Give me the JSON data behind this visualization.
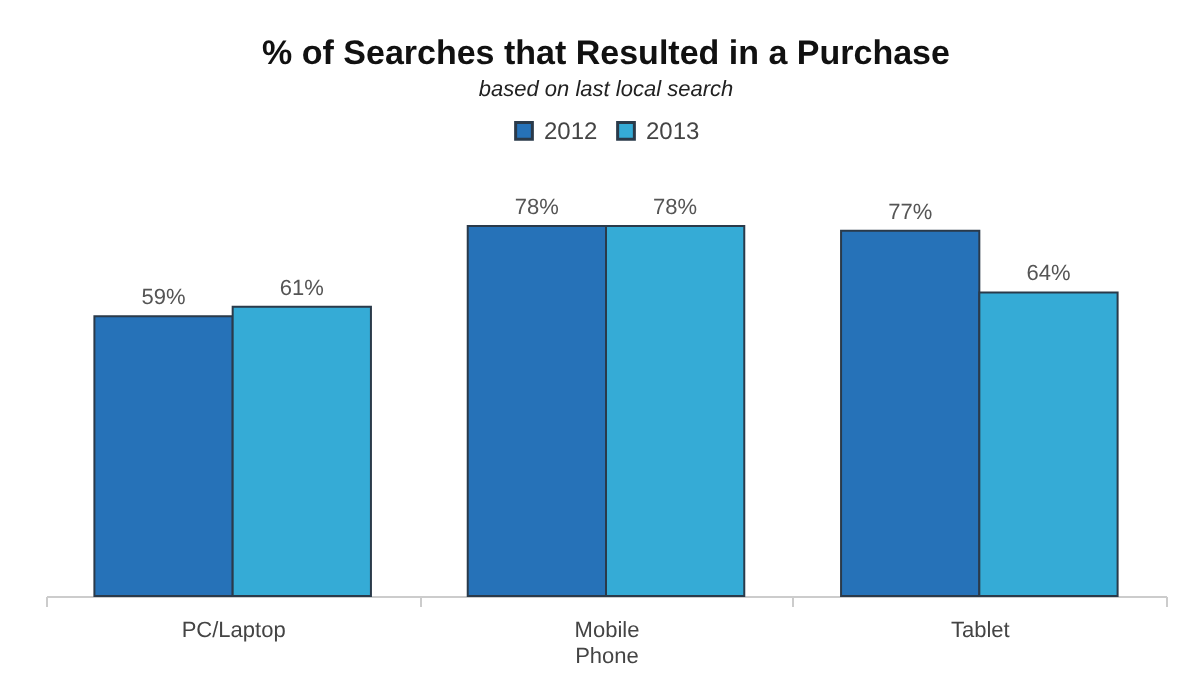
{
  "chart_data": {
    "type": "bar",
    "title": "% of Searches that Resulted in a Purchase",
    "subtitle": "based on last local search",
    "categories": [
      "PC/Laptop",
      "Mobile Phone",
      "Tablet"
    ],
    "series": [
      {
        "name": "2012",
        "color": "#2672b8",
        "values": [
          59,
          78,
          77
        ],
        "value_labels": [
          "59%",
          "78%",
          "77%"
        ]
      },
      {
        "name": "2013",
        "color": "#35abd6",
        "values": [
          61,
          78,
          64
        ],
        "value_labels": [
          "61%",
          "78%",
          "64%"
        ]
      }
    ],
    "legend": "top",
    "grid": false
  }
}
